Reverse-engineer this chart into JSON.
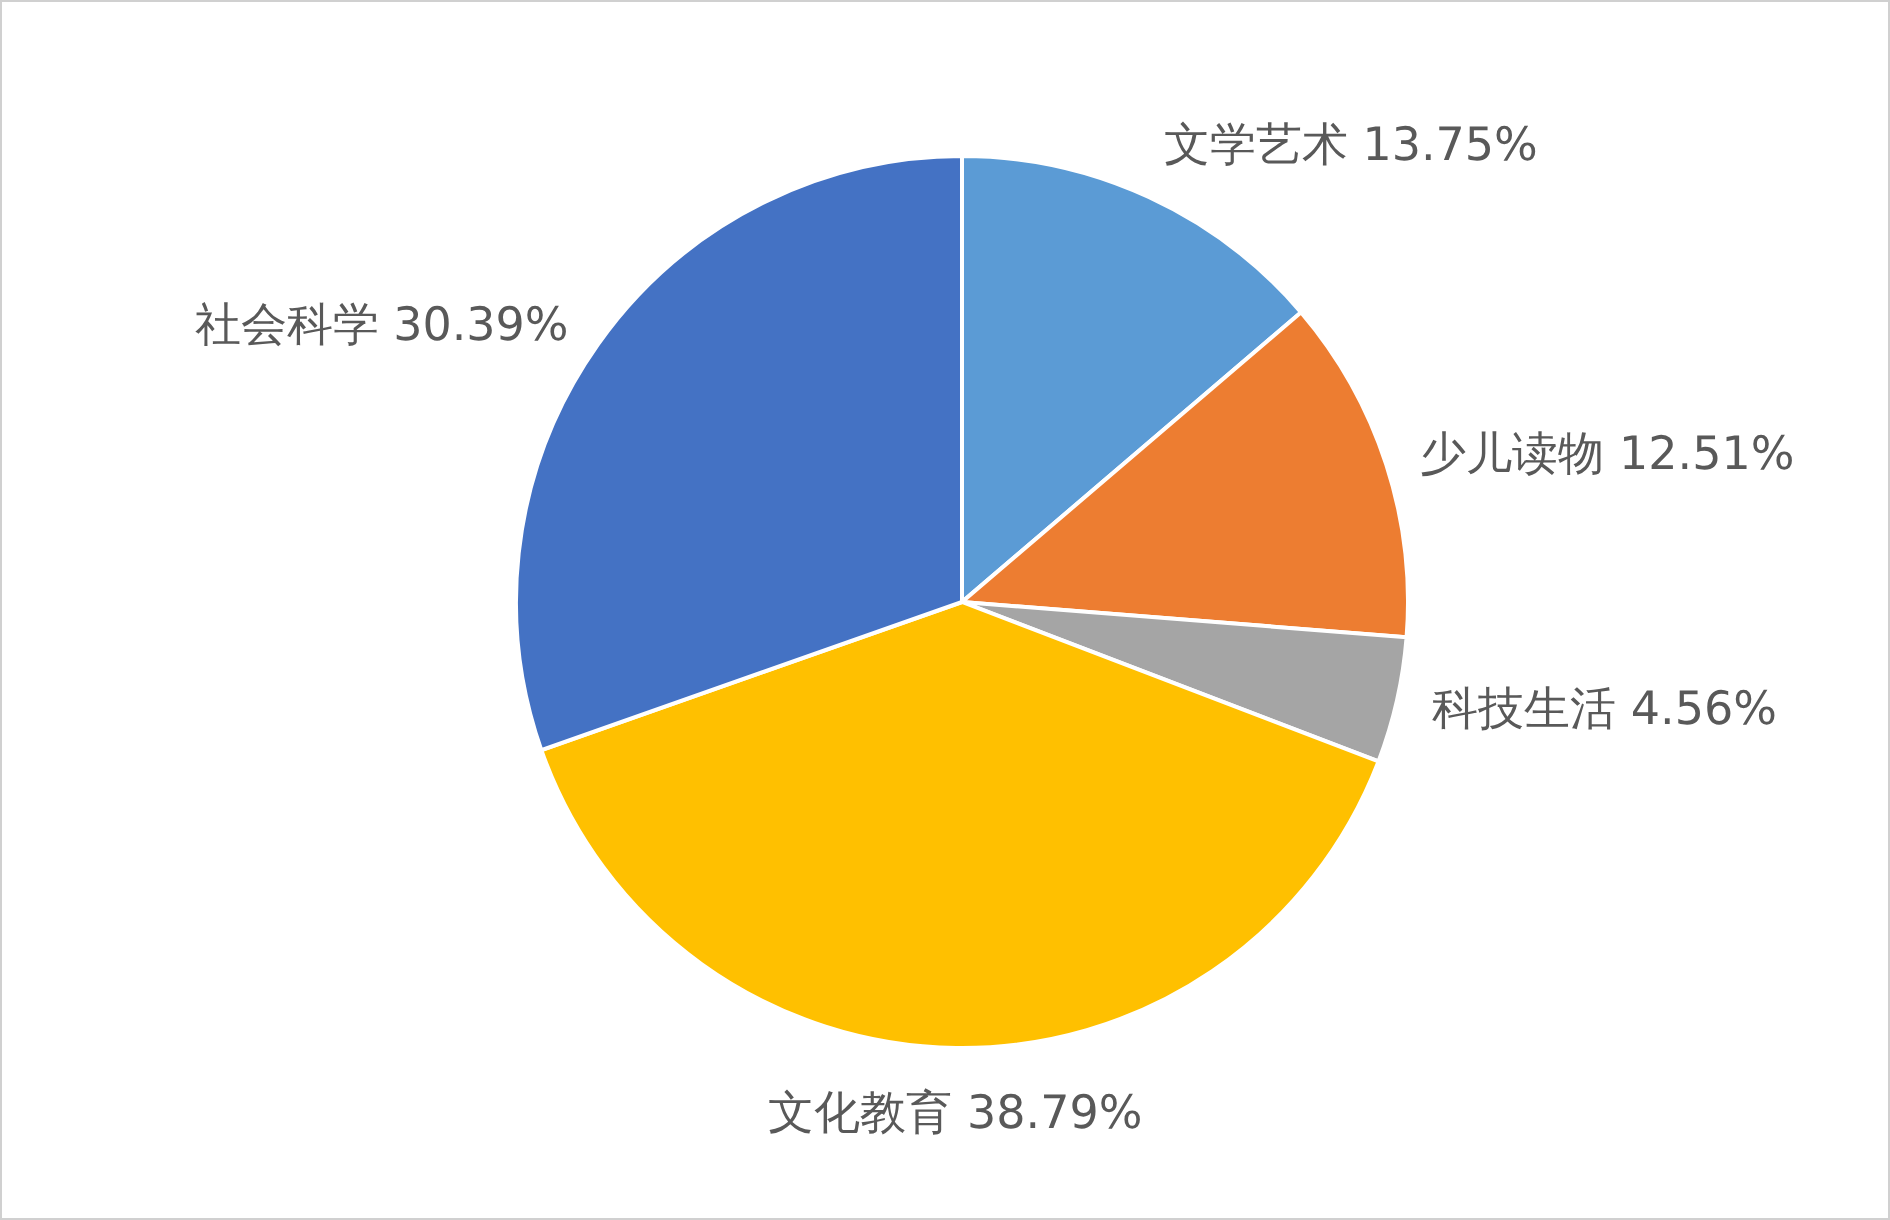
{
  "chart_data": {
    "type": "pie",
    "categories": [
      "文学艺术",
      "少儿读物",
      "科技生活",
      "文化教育",
      "社会科学"
    ],
    "values": [
      13.75,
      12.51,
      4.56,
      38.79,
      30.39
    ],
    "value_labels": [
      "13.75%",
      "12.51%",
      "4.56%",
      "38.79%",
      "30.39%"
    ],
    "colors": [
      "#5b9bd5",
      "#ed7d31",
      "#a5a5a5",
      "#ffc000",
      "#4472c4"
    ]
  }
}
